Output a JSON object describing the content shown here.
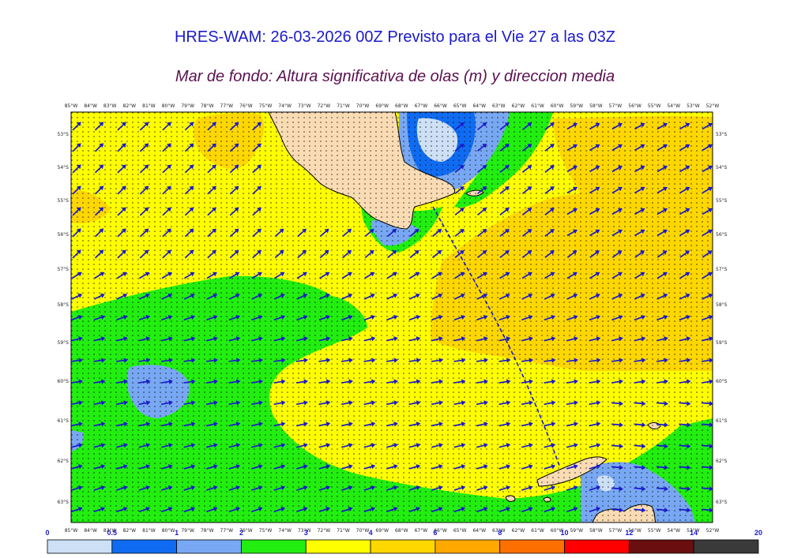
{
  "title": "HRES-WAM: 26-03-2026 00Z Previsto para el Vie 27 a las 03Z",
  "subtitle": "Mar de fondo: Altura significativa de olas (m) y direccion media",
  "map": {
    "lon_labels": [
      "85°W",
      "84°W",
      "83°W",
      "82°W",
      "81°W",
      "80°W",
      "79°W",
      "78°W",
      "77°W",
      "76°W",
      "75°W",
      "74°W",
      "73°W",
      "72°W",
      "71°W",
      "70°W",
      "69°W",
      "68°W",
      "67°W",
      "66°W",
      "65°W",
      "64°W",
      "63°W",
      "62°W",
      "61°W",
      "60°W",
      "59°W",
      "58°W",
      "57°W",
      "56°W",
      "55°W",
      "54°W",
      "53°W",
      "52°W"
    ],
    "lat_labels": [
      "53°S",
      "54°S",
      "55°S",
      "56°S",
      "57°S",
      "58°S",
      "59°S",
      "60°S",
      "61°S",
      "62°S",
      "63°S"
    ],
    "land_color": "#fadcb4"
  },
  "colorbar": {
    "labels": [
      "0",
      "0.5",
      "1",
      "2",
      "3",
      "4",
      "6",
      "8",
      "10",
      "12",
      "14",
      "20"
    ],
    "colors": [
      "#cde0f6",
      "#0f6cf2",
      "#78a8f3",
      "#22ee10",
      "#fefe00",
      "#fed700",
      "#fea800",
      "#fd7000",
      "#fe0000",
      "#6a0f0f",
      "#3a3a3a"
    ]
  }
}
